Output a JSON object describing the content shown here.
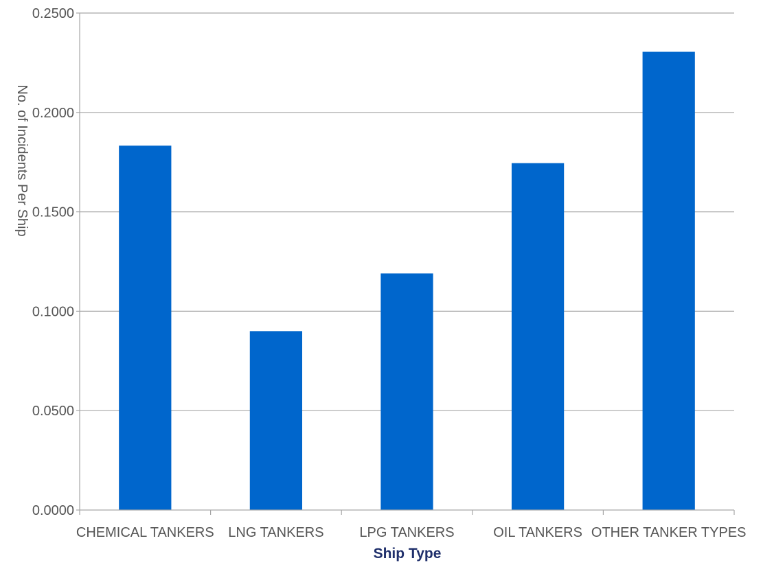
{
  "chart_data": {
    "type": "bar",
    "categories": [
      "CHEMICAL TANKERS",
      "LNG TANKERS",
      "LPG TANKERS",
      "OIL TANKERS",
      "OTHER TANKER TYPES"
    ],
    "values": [
      0.1833,
      0.09,
      0.119,
      0.1745,
      0.2305
    ],
    "xlabel": "Ship Type",
    "ylabel": "No. of Incidents Per Ship",
    "ylim": [
      0,
      0.25
    ],
    "y_ticks": [
      "0.0000",
      "0.0500",
      "0.1000",
      "0.1500",
      "0.2000",
      "0.2500"
    ],
    "y_tick_values": [
      0,
      0.05,
      0.1,
      0.15,
      0.2,
      0.25
    ],
    "grid": "horizontal",
    "legend": "none",
    "colors": {
      "bar": "#0066cc",
      "grid": "#a6a6a6",
      "axis": "#a6a6a6",
      "text": "#555555",
      "xlabel": "#1f2f6b"
    }
  }
}
